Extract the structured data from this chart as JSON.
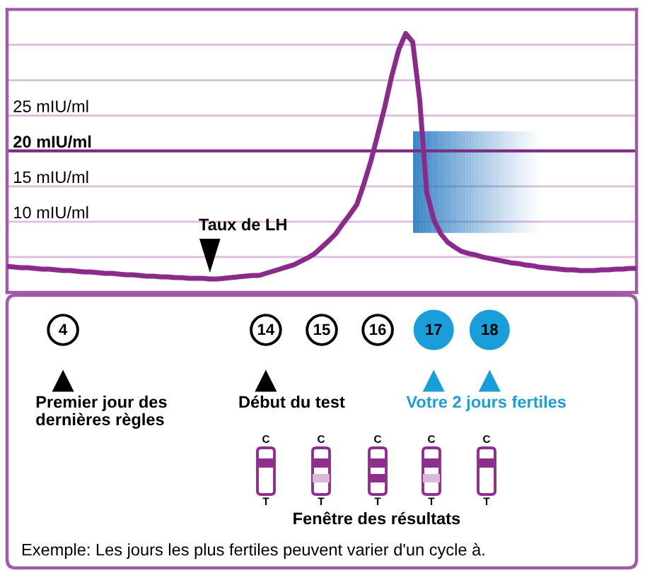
{
  "chart_data": [
    {
      "type": "line",
      "categories": [
        null,
        null,
        null,
        null,
        null,
        null,
        null,
        null,
        "4",
        null,
        null,
        null,
        null,
        null,
        null,
        null,
        null,
        null,
        null,
        null,
        null,
        null,
        null,
        null,
        null,
        null,
        null,
        null,
        null,
        null,
        null,
        null,
        null,
        null,
        null,
        null,
        null,
        "14",
        null,
        null,
        null,
        null,
        null,
        null,
        null,
        "15",
        null,
        null,
        null,
        null,
        null,
        null,
        null,
        "16",
        null,
        null,
        null,
        null,
        null,
        null,
        null,
        "17",
        null,
        null,
        null,
        null,
        null,
        null,
        null,
        "18",
        null,
        null,
        null,
        null,
        null,
        null,
        null,
        null,
        null,
        null,
        null,
        null,
        null,
        null,
        null,
        null,
        null,
        null,
        null,
        null,
        null
      ],
      "values": [
        3.7,
        3.6,
        3.5,
        3.5,
        3.4,
        3.3,
        3.3,
        3.2,
        3.1,
        3.1,
        3.0,
        2.9,
        2.9,
        2.8,
        2.7,
        2.7,
        2.6,
        2.5,
        2.5,
        2.4,
        2.3,
        2.3,
        2.2,
        2.2,
        2.1,
        2.1,
        2.0,
        2.0,
        2.0,
        1.9,
        1.9,
        2.0,
        2.1,
        2.2,
        2.3,
        2.4,
        2.4,
        2.7,
        3.0,
        3.3,
        3.6,
        3.9,
        4.4,
        4.9,
        5.5,
        6.4,
        7.3,
        8.3,
        9.7,
        11.0,
        12.4,
        15.3,
        18.5,
        22.3,
        26.2,
        30.6,
        34.3,
        36.6,
        35.4,
        27.2,
        14.2,
        10.3,
        8.3,
        7.1,
        6.4,
        5.8,
        5.5,
        5.3,
        5.0,
        4.8,
        4.6,
        4.4,
        4.2,
        4.1,
        3.9,
        3.8,
        3.6,
        3.5,
        3.4,
        3.3,
        3.2,
        3.2,
        3.1,
        3.1,
        3.1,
        3.2,
        3.2,
        3.3,
        3.3,
        3.4,
        3.4
      ],
      "color": "#8a2b8b",
      "line_style": "solid",
      "ylim": [
        0,
        40
      ],
      "yticks": [
        {
          "value": 5,
          "label": null
        },
        {
          "value": 10,
          "label": "10 mIU/ml"
        },
        {
          "value": 15,
          "label": "15 mIU/ml"
        },
        {
          "value": 20,
          "label": null
        },
        {
          "value": 25,
          "label": "25 mIU/ml"
        },
        {
          "value": 30,
          "label": null
        },
        {
          "value": 35,
          "label": null
        }
      ],
      "grid": "y",
      "ref_lines": [
        {
          "axis": "y",
          "value": 20,
          "label": "20 mIU/ml",
          "color": "#7b2c82"
        }
      ],
      "annotations": [
        "Taux de LH",
        "Premier jour des dernières règles",
        "Début du test",
        "Votre 2 jours fertiles"
      ]
    },
    {
      "type": "other",
      "xlabel": "Fenêtre des résultats",
      "annotations": [
        "C",
        "T",
        "C",
        "T",
        "C",
        "T",
        "C",
        "T",
        "C",
        "T",
        "Exemple: Les jours les plus fertiles peuvent varier d'un cycle à."
      ]
    }
  ]
}
